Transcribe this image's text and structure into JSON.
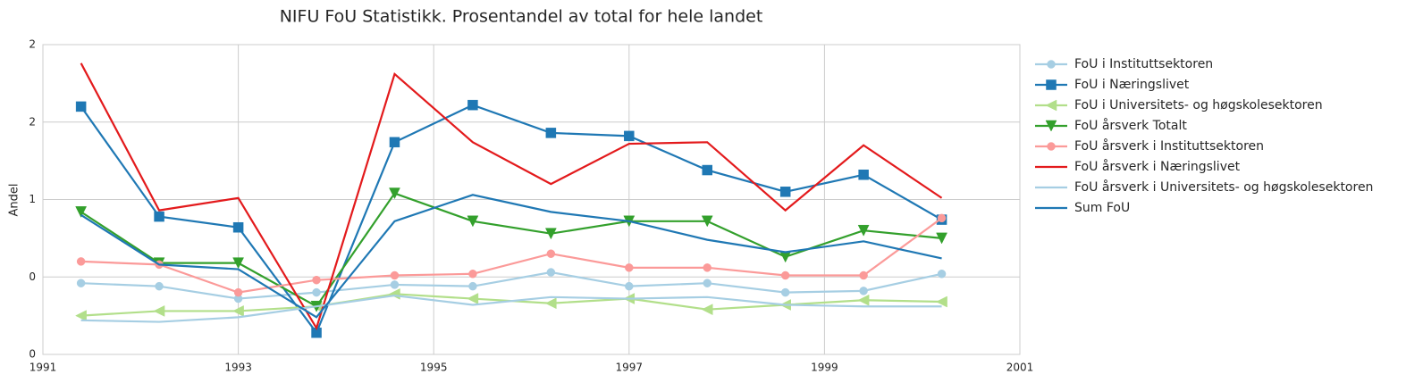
{
  "chart_data": {
    "type": "line",
    "title": "NIFU FoU Statistikk. Prosentandel av total for hele landet",
    "y_label": "Andel",
    "x": [
      1991.39,
      1992.19,
      1993.0,
      1993.8,
      1994.6,
      1995.4,
      1996.2,
      1997.0,
      1997.8,
      1998.6,
      1999.4,
      2000.2
    ],
    "xlim": [
      1991,
      2001
    ],
    "xticks": [
      1991,
      1993,
      1995,
      1997,
      1999,
      2001
    ],
    "ylim": [
      0,
      2
    ],
    "yticks": [
      0,
      {
        "value": 0.5,
        "label": "0"
      },
      1,
      {
        "value": 1.5,
        "label": "2"
      },
      2
    ],
    "grid": true,
    "legend": "outside right",
    "series": [
      {
        "name": "FoU i Instituttsektoren",
        "color": "#a6cee3",
        "marker": "circle",
        "values": [
          0.46,
          0.44,
          0.36,
          0.4,
          0.45,
          0.44,
          0.53,
          0.44,
          0.46,
          0.4,
          0.41,
          0.52
        ]
      },
      {
        "name": "FoU i Næringslivet",
        "color": "#1f78b4",
        "marker": "square",
        "values": [
          1.6,
          0.89,
          0.82,
          0.14,
          1.37,
          1.61,
          1.43,
          1.41,
          1.19,
          1.05,
          1.16,
          0.87
        ]
      },
      {
        "name": "FoU i Universitets- og høgskolesektoren",
        "color": "#b2df8a",
        "marker": "triangle-left",
        "values": [
          0.25,
          0.28,
          0.28,
          0.31,
          0.39,
          0.36,
          0.33,
          0.36,
          0.29,
          0.32,
          0.35,
          0.34
        ]
      },
      {
        "name": "FoU årsverk Totalt",
        "color": "#33a02c",
        "marker": "triangle-down",
        "values": [
          0.92,
          0.59,
          0.59,
          0.31,
          1.04,
          0.86,
          0.78,
          0.86,
          0.86,
          0.63,
          0.8,
          0.75
        ]
      },
      {
        "name": "FoU årsverk i Instituttsektoren",
        "color": "#fb9a99",
        "marker": "circle",
        "values": [
          0.6,
          0.58,
          0.4,
          0.48,
          0.51,
          0.52,
          0.65,
          0.56,
          0.56,
          0.51,
          0.51,
          0.88
        ]
      },
      {
        "name": "FoU årsverk i Næringslivet",
        "color": "#e31a1c",
        "values": [
          1.88,
          0.93,
          1.01,
          0.17,
          1.81,
          1.37,
          1.1,
          1.36,
          1.37,
          0.93,
          1.35,
          1.01
        ]
      },
      {
        "name": "FoU årsverk i Universitets- og høgskolesektoren",
        "color": "#a6cee3",
        "values": [
          0.22,
          0.21,
          0.24,
          0.31,
          0.38,
          0.32,
          0.37,
          0.36,
          0.37,
          0.32,
          0.31,
          0.31
        ]
      },
      {
        "name": "Sum FoU",
        "color": "#1f78b4",
        "values": [
          0.9,
          0.58,
          0.55,
          0.24,
          0.86,
          1.03,
          0.92,
          0.86,
          0.74,
          0.66,
          0.73,
          0.62
        ]
      }
    ]
  }
}
